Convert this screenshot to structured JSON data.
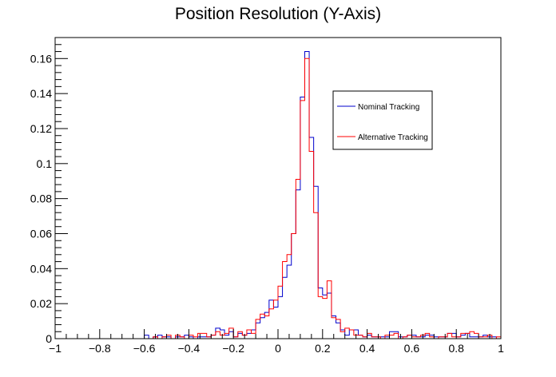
{
  "chart_data": {
    "type": "step-histogram",
    "title": "Position Resolution (Y-Axis)",
    "xlabel": "",
    "ylabel": "",
    "xlim": [
      -1,
      1
    ],
    "ylim": [
      0,
      0.172
    ],
    "grid": false,
    "legend_position": "top-right",
    "x_ticks": [
      {
        "value": -1,
        "label": "−1"
      },
      {
        "value": -0.8,
        "label": "−0.8"
      },
      {
        "value": -0.6,
        "label": "−0.6"
      },
      {
        "value": -0.4,
        "label": "−0.4"
      },
      {
        "value": -0.2,
        "label": "−0.2"
      },
      {
        "value": 0,
        "label": "0"
      },
      {
        "value": 0.2,
        "label": "0.2"
      },
      {
        "value": 0.4,
        "label": "0.4"
      },
      {
        "value": 0.6,
        "label": "0.6"
      },
      {
        "value": 0.8,
        "label": "0.8"
      },
      {
        "value": 1,
        "label": "1"
      }
    ],
    "y_ticks": [
      {
        "value": 0,
        "label": "0"
      },
      {
        "value": 0.02,
        "label": "0.02"
      },
      {
        "value": 0.04,
        "label": "0.04"
      },
      {
        "value": 0.06,
        "label": "0.06"
      },
      {
        "value": 0.08,
        "label": "0.08"
      },
      {
        "value": 0.1,
        "label": "0.1"
      },
      {
        "value": 0.12,
        "label": "0.12"
      },
      {
        "value": 0.14,
        "label": "0.14"
      },
      {
        "value": 0.16,
        "label": "0.16"
      }
    ],
    "bin_low": -1,
    "bin_width": 0.02,
    "series": [
      {
        "name": "Nominal Tracking",
        "color": "#0000cc",
        "values": [
          0,
          0,
          0,
          0,
          0,
          0,
          0,
          0,
          0,
          0,
          0,
          0,
          0,
          0,
          0,
          0,
          0,
          0,
          0,
          0,
          0.002,
          0,
          0.001,
          0.002,
          0.001,
          0.001,
          0,
          0.001,
          0.001,
          0.002,
          0.001,
          0,
          0.001,
          0.001,
          0.001,
          0.002,
          0.006,
          0.005,
          0.002,
          0.004,
          0.001,
          0.003,
          0.002,
          0.003,
          0.005,
          0.009,
          0.012,
          0.015,
          0.022,
          0.018,
          0.024,
          0.035,
          0.042,
          0.06,
          0.085,
          0.138,
          0.164,
          0.115,
          0.087,
          0.029,
          0.025,
          0.026,
          0.013,
          0.009,
          0.005,
          0.002,
          0.005,
          0.005,
          0.002,
          0.001,
          0.002,
          0.001,
          0.001,
          0.001,
          0.001,
          0.004,
          0.004,
          0.001,
          0.001,
          0.002,
          0.002,
          0.001,
          0.001,
          0.002,
          0.002,
          0.001,
          0.001,
          0.001,
          0.003,
          0.003,
          0.001,
          0.002,
          0.003,
          0.001,
          0.001,
          0.001,
          0.002,
          0.001,
          0.001,
          0
        ]
      },
      {
        "name": "Alternative Tracking",
        "color": "#ff0000",
        "values": [
          0,
          0,
          0,
          0,
          0,
          0,
          0,
          0,
          0,
          0,
          0,
          0,
          0,
          0,
          0,
          0,
          0,
          0,
          0,
          0,
          0,
          0,
          0.001,
          0,
          0.001,
          0.002,
          0,
          0.002,
          0.001,
          0,
          0.002,
          0.001,
          0.003,
          0.003,
          0.001,
          0.002,
          0.004,
          0.002,
          0.003,
          0.006,
          0.001,
          0.004,
          0.002,
          0.005,
          0.003,
          0.011,
          0.014,
          0.013,
          0.017,
          0.022,
          0.03,
          0.044,
          0.048,
          0.06,
          0.091,
          0.136,
          0.16,
          0.107,
          0.072,
          0.024,
          0.023,
          0.033,
          0.012,
          0.011,
          0.004,
          0.006,
          0.005,
          0.002,
          0.002,
          0.001,
          0.003,
          0.001,
          0.001,
          0,
          0.002,
          0.002,
          0.003,
          0,
          0.001,
          0.002,
          0.001,
          0.001,
          0.002,
          0.003,
          0.001,
          0,
          0.001,
          0.001,
          0.003,
          0.001,
          0.001,
          0.003,
          0.003,
          0.004,
          0.003,
          0.001,
          0.001,
          0.002,
          0,
          0.001
        ]
      }
    ]
  },
  "colors": {
    "axis": "#000000",
    "background": "#ffffff"
  }
}
